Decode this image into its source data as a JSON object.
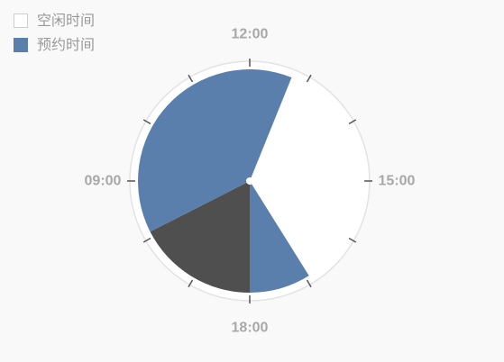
{
  "chart_data": {
    "type": "pie",
    "legend": [
      {
        "label": "空闲时间",
        "color": "#ffffff",
        "border": "#cfcfcf"
      },
      {
        "label": "预约时间",
        "color": "#5b7fad",
        "border": "#5b7fad"
      }
    ],
    "dial": {
      "labels": [
        {
          "text": "12:00",
          "angle": 0
        },
        {
          "text": "15:00",
          "angle": 90
        },
        {
          "text": "18:00",
          "angle": 180
        },
        {
          "text": "09:00",
          "angle": 270
        }
      ],
      "ticks": [
        0,
        30,
        60,
        90,
        120,
        150,
        180,
        210,
        240,
        270,
        300,
        330
      ]
    },
    "segments": [
      {
        "legend": "空闲时间",
        "start_deg": 22,
        "end_deg": 148,
        "color": "#ffffff"
      },
      {
        "legend": "预约时间",
        "start_deg": 148,
        "end_deg": 180,
        "color": "#5b7fad"
      },
      {
        "legend": "",
        "start_deg": 180,
        "end_deg": 243,
        "color": "#4f4f4f"
      },
      {
        "legend": "预约时间",
        "start_deg": 243,
        "end_deg": 382,
        "color": "#5b7fad"
      }
    ],
    "colors": {
      "ring": "#ffffff",
      "ring_border": "#e3e3e3",
      "tick": "#555555",
      "center_dot": "#ffffff"
    }
  }
}
